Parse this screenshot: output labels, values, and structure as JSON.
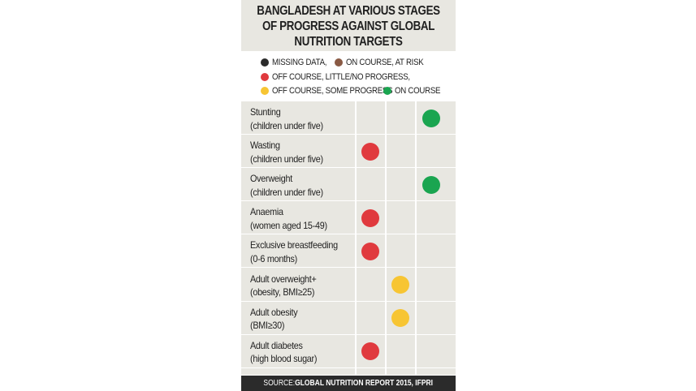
{
  "chart_data": {
    "type": "table",
    "title_lines": [
      "BANGLADESH AT VARIOUS STAGES",
      "OF PROGRESS AGAINST GLOBAL",
      "NUTRITION TARGETS"
    ],
    "legend": [
      {
        "key": "missing",
        "label": "MISSING DATA,",
        "color": "#2b2b2b"
      },
      {
        "key": "at_risk",
        "label": "ON COURSE, AT RISK",
        "color": "#8a5a44"
      },
      {
        "key": "little",
        "label": "OFF COURSE, LITTLE/NO PROGRESS,",
        "color": "#e03a3e"
      },
      {
        "key": "some",
        "label": "OFF COURSE, SOME PROGRESS",
        "color": "#f7c533"
      },
      {
        "key": "on",
        "label": "ON COURSE",
        "color": "#1aa550"
      }
    ],
    "rows": [
      {
        "line1": "Stunting",
        "line2": "(children under five)",
        "status": "on"
      },
      {
        "line1": "Wasting",
        "line2": "(children under five)",
        "status": "little"
      },
      {
        "line1": "Overweight",
        "line2": "(children under five)",
        "status": "on"
      },
      {
        "line1": "Anaemia",
        "line2": "(women aged 15-49)",
        "status": "little"
      },
      {
        "line1": "Exclusive breastfeeding",
        "line2": "(0-6 months)",
        "status": "little"
      },
      {
        "line1": "Adult overweight+",
        "line2": "(obesity, BMI≥25)",
        "status": "some"
      },
      {
        "line1": "Adult obesity",
        "line2": "(BMI≥30)",
        "status": "some"
      },
      {
        "line1": "Adult diabetes",
        "line2": "(high blood sugar)",
        "status": "little"
      }
    ],
    "status_columns": [
      "little",
      "some",
      "on"
    ],
    "source_prefix": "SOURCE:",
    "source_text": "GLOBAL NUTRITION REPORT 2015, IFPRI"
  }
}
